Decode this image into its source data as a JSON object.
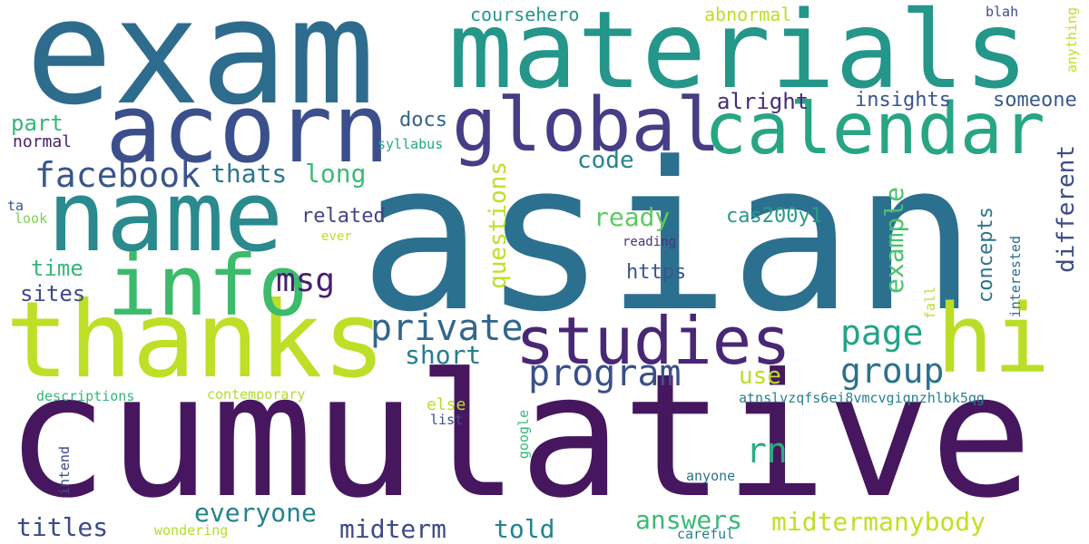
{
  "colors": {
    "background": "#ffffff",
    "dark_purple": "#46175f",
    "indigo": "#3b4d8a",
    "blue": "#2f6f90",
    "teal": "#25938b",
    "green": "#3dbb6c",
    "light_green": "#7fd13f",
    "yellow_green": "#bade28"
  },
  "words": {
    "asian": "asian",
    "cumulative": "cumulative",
    "exam": "exam",
    "materials": "materials",
    "acorn": "acorn",
    "name": "name",
    "thanks": "thanks",
    "info": "info",
    "global": "global",
    "calendar": "calendar",
    "hi": "hi",
    "studies": "studies",
    "program": "program",
    "private": "private",
    "facebook": "facebook",
    "page": "page",
    "group": "group",
    "rn": "rn",
    "msg": "msg",
    "thats": "thats",
    "long": "long",
    "part": "part",
    "normal": "normal",
    "time": "time",
    "sites": "sites",
    "titles": "titles",
    "everyone": "everyone",
    "midterm": "midterm",
    "told": "told",
    "answers": "answers",
    "midtermanybody": "midtermanybody",
    "short": "short",
    "use": "use",
    "related": "related",
    "ready": "ready",
    "cas200y1": "cas200y1",
    "https": "https",
    "code": "code",
    "docs": "docs",
    "alright": "alright",
    "insights": "insights",
    "someone": "someone",
    "coursehero": "coursehero",
    "abnormal": "abnormal",
    "blah": "blah",
    "anything": "anything",
    "questions": "questions",
    "example": "example",
    "concepts": "concepts",
    "different": "different",
    "syllabus": "syllabus",
    "ta": "ta",
    "look": "look",
    "ever": "ever",
    "reading": "reading",
    "fall": "fall",
    "interested": "interested",
    "descriptions": "descriptions",
    "contemporary": "contemporary",
    "else": "else",
    "list": "list",
    "google": "google",
    "intend": "intend",
    "anyone": "anyone",
    "wondering": "wondering",
    "careful": "careful",
    "atnslvzqfs6ei8vmcvgiqnzhlbk5qg": "atnslvzqfs6ei8vmcvgiqnzhlbk5qg"
  }
}
